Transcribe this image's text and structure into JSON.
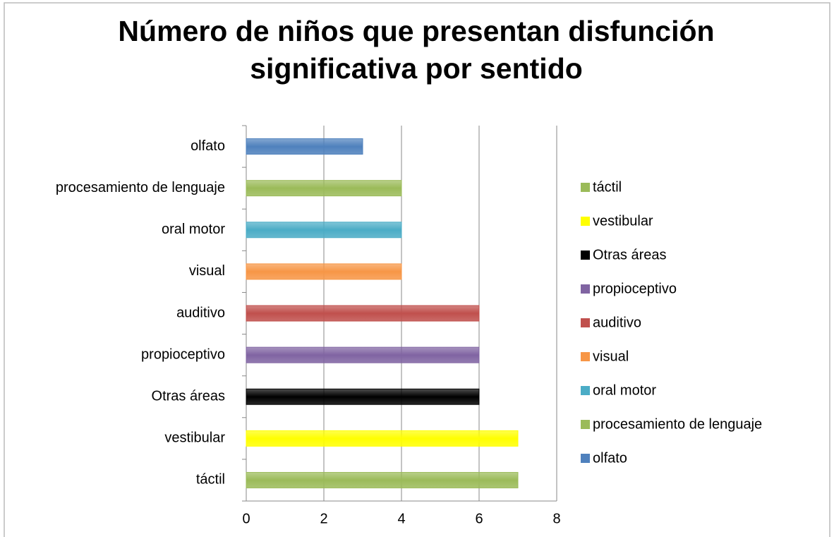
{
  "chart_data": {
    "type": "bar",
    "orientation": "horizontal",
    "title": "Número de niños que presentan disfunción significativa por sentido",
    "categories": [
      "táctil",
      "vestibular",
      "Otras áreas",
      "propioceptivo",
      "auditivo",
      "visual",
      "oral motor",
      "procesamiento de lenguaje",
      "olfato"
    ],
    "values": [
      7,
      7,
      6,
      6,
      6,
      4,
      4,
      4,
      3
    ],
    "colors": [
      "#9bbb59",
      "#ffff00",
      "#000000",
      "#8064a2",
      "#c0504d",
      "#f79646",
      "#4bacc6",
      "#9bbb59",
      "#4f81bd"
    ],
    "xlim": [
      0,
      8
    ],
    "xticks": [
      0,
      2,
      4,
      6,
      8
    ],
    "grid": true,
    "legend": "right"
  }
}
